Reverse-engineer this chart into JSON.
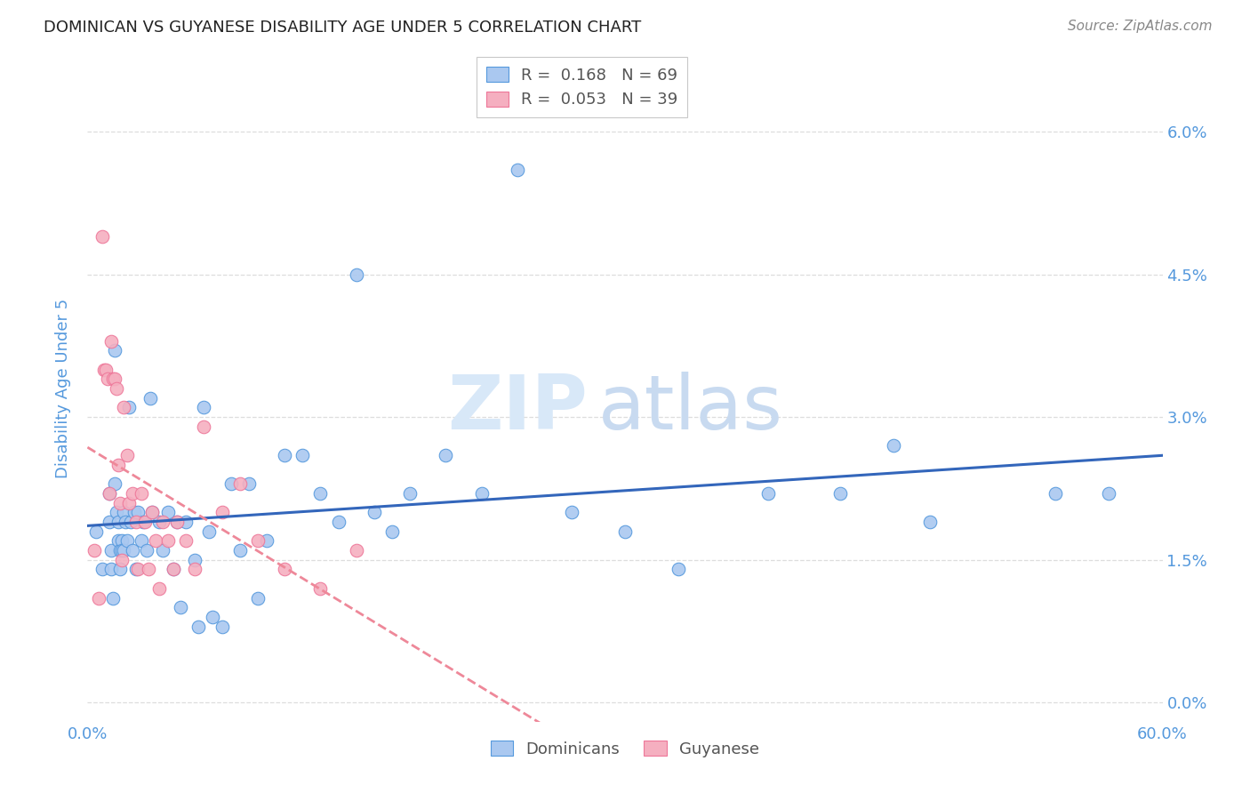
{
  "title": "DOMINICAN VS GUYANESE DISABILITY AGE UNDER 5 CORRELATION CHART",
  "source": "Source: ZipAtlas.com",
  "ylabel": "Disability Age Under 5",
  "xlim": [
    0.0,
    0.6
  ],
  "ylim": [
    -0.002,
    0.068
  ],
  "ytick_vals": [
    0.0,
    0.015,
    0.03,
    0.045,
    0.06
  ],
  "ytick_labels": [
    "0.0%",
    "1.5%",
    "3.0%",
    "4.5%",
    "6.0%"
  ],
  "xtick_vals": [
    0.0,
    0.6
  ],
  "xtick_labels": [
    "0.0%",
    "60.0%"
  ],
  "legend_r_dominicans": "0.168",
  "legend_n_dominicans": "69",
  "legend_r_guyanese": "0.053",
  "legend_n_guyanese": "39",
  "dominican_fill": "#aac8f0",
  "guyanese_fill": "#f5afc0",
  "dominican_edge": "#5599dd",
  "guyanese_edge": "#ee7799",
  "dominican_line_color": "#3366bb",
  "guyanese_line_color": "#ee8899",
  "watermark_color": "#d8e8f8",
  "title_color": "#222222",
  "source_color": "#888888",
  "axis_color": "#5599dd",
  "grid_color": "#dddddd",
  "legend_text_color": "#555555",
  "legend_r_color": "#5599dd",
  "legend_n_color": "#ee4466",
  "background_color": "#ffffff",
  "dominicans_x": [
    0.005,
    0.008,
    0.012,
    0.012,
    0.013,
    0.013,
    0.014,
    0.015,
    0.015,
    0.016,
    0.017,
    0.017,
    0.018,
    0.018,
    0.019,
    0.019,
    0.02,
    0.02,
    0.021,
    0.022,
    0.023,
    0.024,
    0.025,
    0.026,
    0.027,
    0.028,
    0.03,
    0.031,
    0.033,
    0.035,
    0.036,
    0.04,
    0.042,
    0.045,
    0.048,
    0.05,
    0.052,
    0.055,
    0.06,
    0.062,
    0.065,
    0.068,
    0.07,
    0.075,
    0.08,
    0.085,
    0.09,
    0.095,
    0.1,
    0.11,
    0.12,
    0.13,
    0.14,
    0.15,
    0.16,
    0.17,
    0.18,
    0.2,
    0.22,
    0.24,
    0.27,
    0.3,
    0.33,
    0.38,
    0.42,
    0.45,
    0.47,
    0.54,
    0.57
  ],
  "dominicans_y": [
    0.018,
    0.014,
    0.022,
    0.019,
    0.016,
    0.014,
    0.011,
    0.037,
    0.023,
    0.02,
    0.019,
    0.017,
    0.016,
    0.014,
    0.017,
    0.016,
    0.02,
    0.016,
    0.019,
    0.017,
    0.031,
    0.019,
    0.016,
    0.02,
    0.014,
    0.02,
    0.017,
    0.019,
    0.016,
    0.032,
    0.02,
    0.019,
    0.016,
    0.02,
    0.014,
    0.019,
    0.01,
    0.019,
    0.015,
    0.008,
    0.031,
    0.018,
    0.009,
    0.008,
    0.023,
    0.016,
    0.023,
    0.011,
    0.017,
    0.026,
    0.026,
    0.022,
    0.019,
    0.045,
    0.02,
    0.018,
    0.022,
    0.026,
    0.022,
    0.056,
    0.02,
    0.018,
    0.014,
    0.022,
    0.022,
    0.027,
    0.019,
    0.022,
    0.022
  ],
  "guyanese_x": [
    0.004,
    0.006,
    0.008,
    0.009,
    0.01,
    0.011,
    0.012,
    0.013,
    0.014,
    0.015,
    0.016,
    0.017,
    0.018,
    0.019,
    0.02,
    0.022,
    0.023,
    0.025,
    0.027,
    0.028,
    0.03,
    0.032,
    0.034,
    0.036,
    0.038,
    0.04,
    0.042,
    0.045,
    0.048,
    0.05,
    0.055,
    0.06,
    0.065,
    0.075,
    0.085,
    0.095,
    0.11,
    0.13,
    0.15
  ],
  "guyanese_y": [
    0.016,
    0.011,
    0.049,
    0.035,
    0.035,
    0.034,
    0.022,
    0.038,
    0.034,
    0.034,
    0.033,
    0.025,
    0.021,
    0.015,
    0.031,
    0.026,
    0.021,
    0.022,
    0.019,
    0.014,
    0.022,
    0.019,
    0.014,
    0.02,
    0.017,
    0.012,
    0.019,
    0.017,
    0.014,
    0.019,
    0.017,
    0.014,
    0.029,
    0.02,
    0.023,
    0.017,
    0.014,
    0.012,
    0.016
  ]
}
